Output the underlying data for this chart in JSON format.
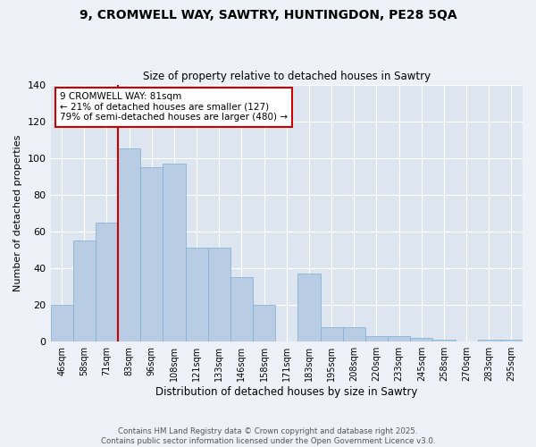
{
  "title_line1": "9, CROMWELL WAY, SAWTRY, HUNTINGDON, PE28 5QA",
  "title_line2": "Size of property relative to detached houses in Sawtry",
  "xlabel": "Distribution of detached houses by size in Sawtry",
  "ylabel": "Number of detached properties",
  "categories": [
    "46sqm",
    "58sqm",
    "71sqm",
    "83sqm",
    "96sqm",
    "108sqm",
    "121sqm",
    "133sqm",
    "146sqm",
    "158sqm",
    "171sqm",
    "183sqm",
    "195sqm",
    "208sqm",
    "220sqm",
    "233sqm",
    "245sqm",
    "258sqm",
    "270sqm",
    "283sqm",
    "295sqm"
  ],
  "values": [
    20,
    55,
    65,
    105,
    95,
    97,
    51,
    51,
    35,
    20,
    0,
    37,
    8,
    8,
    3,
    3,
    2,
    1,
    0,
    1,
    1
  ],
  "bar_color": "#b8cce4",
  "bar_edge_color": "#7aaecd",
  "vline_color": "#cc0000",
  "box_edge_color": "#cc0000",
  "annotation_box_text": "9 CROMWELL WAY: 81sqm\n← 21% of detached houses are smaller (127)\n79% of semi-detached houses are larger (480) →",
  "ylim": [
    0,
    140
  ],
  "yticks": [
    0,
    20,
    40,
    60,
    80,
    100,
    120,
    140
  ],
  "bg_color": "#dde6f0",
  "fig_bg_color": "#eef2f8",
  "footer": "Contains HM Land Registry data © Crown copyright and database right 2025.\nContains public sector information licensed under the Open Government Licence v3.0."
}
